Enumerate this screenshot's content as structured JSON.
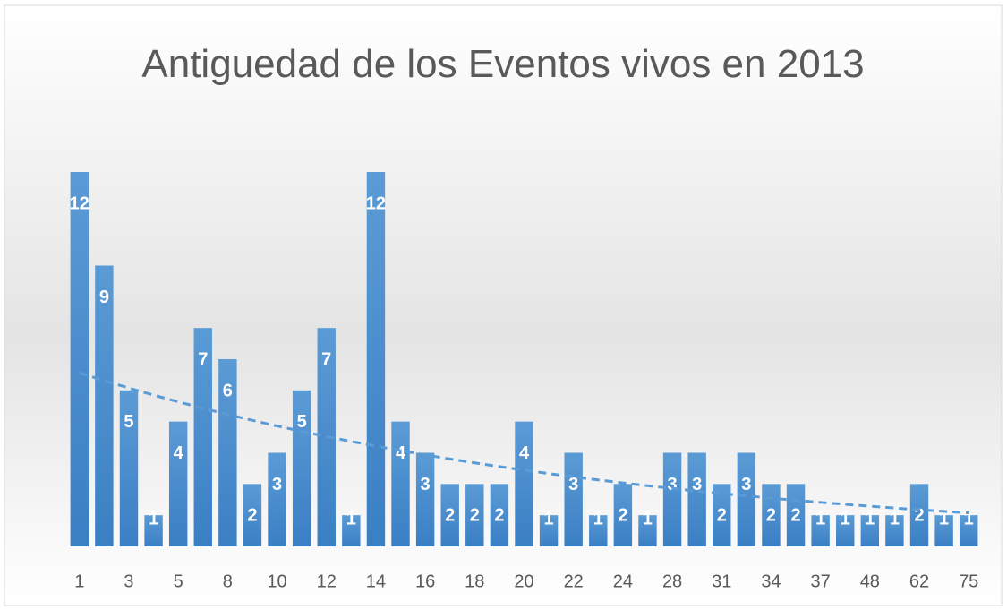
{
  "chart_data": {
    "type": "bar",
    "title": "Antiguedad de los Eventos vivos en 2013",
    "categories": [
      "1",
      null,
      "3",
      null,
      "5",
      null,
      "8",
      null,
      "10",
      null,
      "12",
      null,
      "14",
      null,
      "16",
      null,
      "18",
      null,
      "20",
      null,
      "22",
      null,
      "24",
      null,
      "28",
      null,
      "31",
      null,
      "34",
      null,
      "37",
      null,
      "48",
      null,
      "62",
      null,
      "75"
    ],
    "values": [
      12,
      9,
      5,
      1,
      4,
      7,
      6,
      2,
      3,
      5,
      7,
      1,
      12,
      4,
      3,
      2,
      2,
      2,
      4,
      1,
      3,
      1,
      2,
      1,
      3,
      3,
      2,
      3,
      2,
      2,
      1,
      1,
      1,
      1,
      2,
      1,
      1
    ],
    "color": "#5b9bd5",
    "ylim": [
      0,
      12
    ],
    "trendline": "exponential",
    "data_labels": true
  }
}
